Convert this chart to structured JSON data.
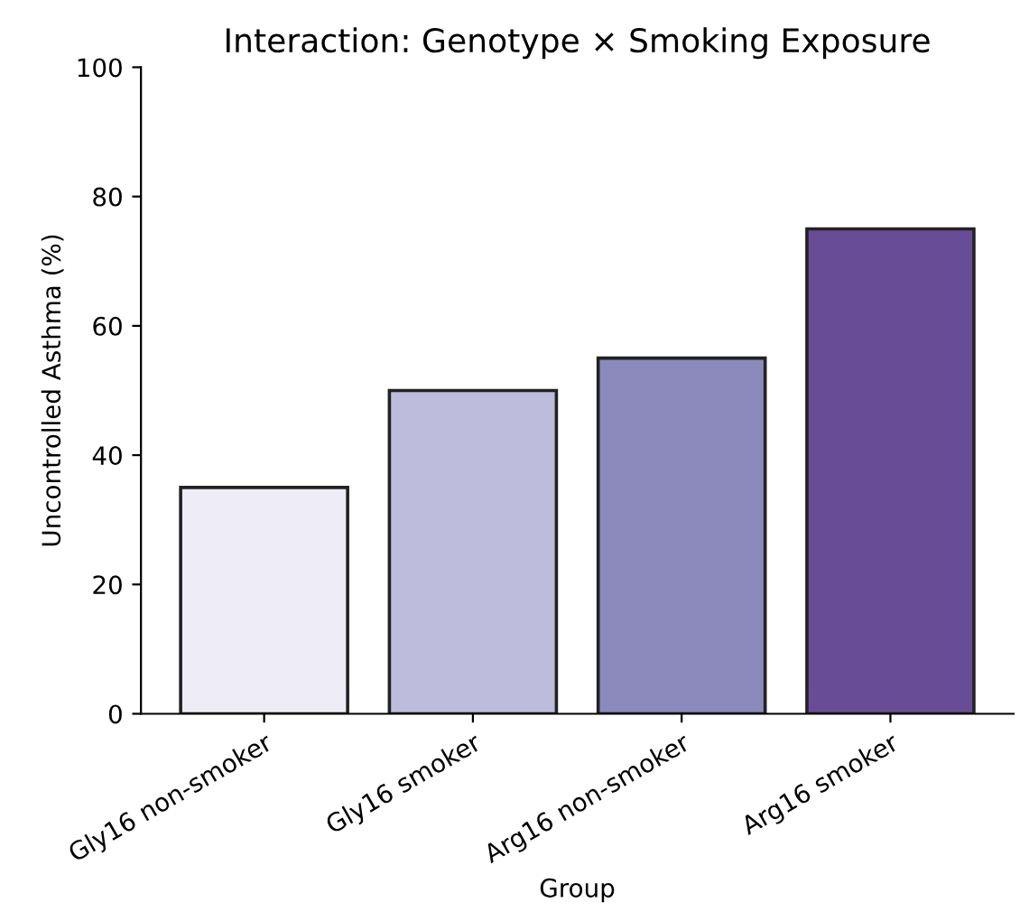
{
  "chart_data": {
    "type": "bar",
    "title": "Interaction: Genotype × Smoking Exposure",
    "xlabel": "Group",
    "ylabel": "Uncontrolled Asthma (%)",
    "categories": [
      "Gly16 non-smoker",
      "Gly16 smoker",
      "Arg16 non-smoker",
      "Arg16 smoker"
    ],
    "values": [
      35,
      50,
      55,
      75
    ],
    "colors": [
      "#eeecf5",
      "#bdbcdc",
      "#8c89bd",
      "#684d96"
    ],
    "ylim": [
      0,
      100
    ],
    "yticks": [
      0,
      20,
      40,
      60,
      80,
      100
    ],
    "grid": false,
    "legend": false
  }
}
